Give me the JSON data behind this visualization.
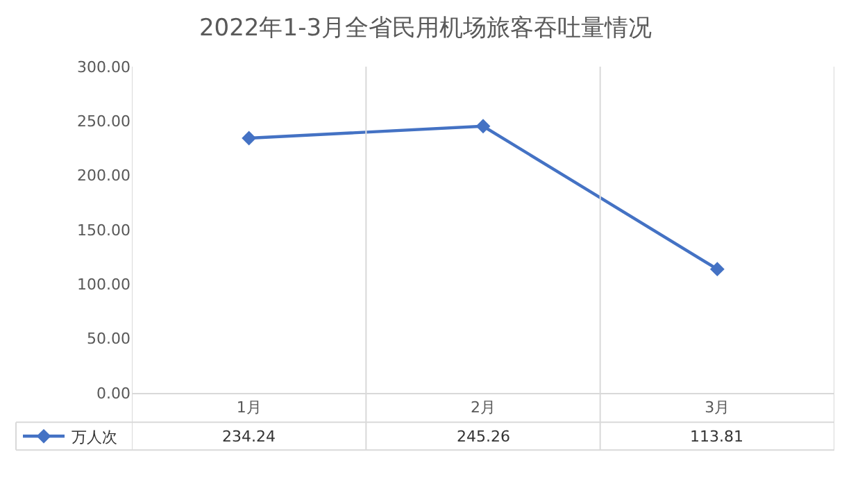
{
  "chart_data": {
    "type": "line",
    "title": "2022年1-3月全省民用机场旅客吞吐量情况",
    "categories": [
      "1月",
      "2月",
      "3月"
    ],
    "series": [
      {
        "name": "万人次",
        "color": "#4472c4",
        "values": [
          234.24,
          245.26,
          113.81
        ]
      }
    ],
    "ylim": [
      0,
      300
    ],
    "yticks": [
      {
        "value": 0,
        "label": "0.00"
      },
      {
        "value": 50,
        "label": "50.00"
      },
      {
        "value": 100,
        "label": "100.00"
      },
      {
        "value": 150,
        "label": "150.00"
      },
      {
        "value": 200,
        "label": "200.00"
      },
      {
        "value": 250,
        "label": "250.00"
      },
      {
        "value": 300,
        "label": "300.00"
      }
    ],
    "value_labels": [
      "234.24",
      "245.26",
      "113.81"
    ],
    "marker": "diamond",
    "line_style": "solid",
    "legend": "bottom"
  }
}
